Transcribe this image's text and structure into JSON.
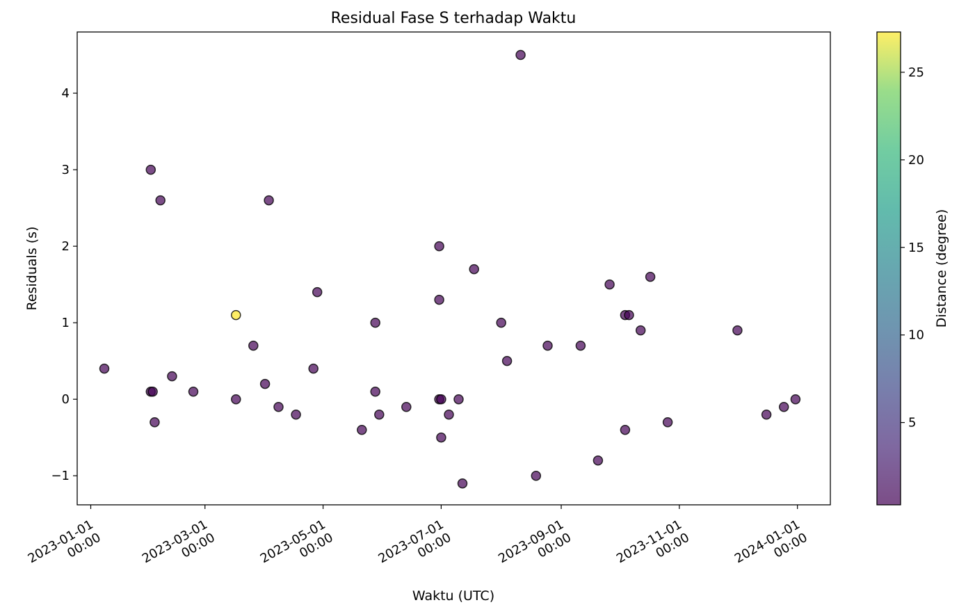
{
  "chart_data": {
    "type": "scatter",
    "title": "Residual Fase S terhadap Waktu",
    "xlabel": "Waktu (UTC)",
    "ylabel": "Residuals (s)",
    "x_axis": "date",
    "xlim": [
      "2022-12-25",
      "2024-01-18"
    ],
    "ylim": [
      -1.38,
      4.8
    ],
    "x_ticks": [
      {
        "date": "2023-01-01",
        "line1": "2023-01-01",
        "line2": "00:00"
      },
      {
        "date": "2023-03-01",
        "line1": "2023-03-01",
        "line2": "00:00"
      },
      {
        "date": "2023-05-01",
        "line1": "2023-05-01",
        "line2": "00:00"
      },
      {
        "date": "2023-07-01",
        "line1": "2023-07-01",
        "line2": "00:00"
      },
      {
        "date": "2023-09-01",
        "line1": "2023-09-01",
        "line2": "00:00"
      },
      {
        "date": "2023-11-01",
        "line1": "2023-11-01",
        "line2": "00:00"
      },
      {
        "date": "2024-01-01",
        "line1": "2024-01-01",
        "line2": "00:00"
      }
    ],
    "y_ticks": [
      -1,
      0,
      1,
      2,
      3,
      4
    ],
    "grid": false,
    "colorbar": {
      "label": "Distance (degree)",
      "min": 0.3,
      "max": 27.3,
      "ticks": [
        5,
        10,
        15,
        20,
        25
      ],
      "colormap": "viridis"
    },
    "marker_alpha": 0.7,
    "points": [
      {
        "x": "2023-01-08",
        "y": 0.4,
        "c": 0.5
      },
      {
        "x": "2023-02-01",
        "y": 3.0,
        "c": 0.5
      },
      {
        "x": "2023-02-01",
        "y": 0.1,
        "c": 0.5
      },
      {
        "x": "2023-02-02",
        "y": 0.1,
        "c": 0.5
      },
      {
        "x": "2023-02-03",
        "y": -0.3,
        "c": 0.5
      },
      {
        "x": "2023-02-06",
        "y": 2.6,
        "c": 0.5
      },
      {
        "x": "2023-02-12",
        "y": 0.3,
        "c": 0.5
      },
      {
        "x": "2023-02-23",
        "y": 0.1,
        "c": 0.5
      },
      {
        "x": "2023-03-17",
        "y": 1.1,
        "c": 27.3
      },
      {
        "x": "2023-03-17",
        "y": 0.0,
        "c": 0.5
      },
      {
        "x": "2023-03-26",
        "y": 0.7,
        "c": 0.5
      },
      {
        "x": "2023-04-01",
        "y": 0.2,
        "c": 0.5
      },
      {
        "x": "2023-04-03",
        "y": 2.6,
        "c": 0.5
      },
      {
        "x": "2023-04-08",
        "y": -0.1,
        "c": 0.5
      },
      {
        "x": "2023-04-17",
        "y": -0.2,
        "c": 0.5
      },
      {
        "x": "2023-04-26",
        "y": 0.4,
        "c": 0.5
      },
      {
        "x": "2023-04-28",
        "y": 1.4,
        "c": 0.5
      },
      {
        "x": "2023-05-21",
        "y": -0.4,
        "c": 0.5
      },
      {
        "x": "2023-05-28",
        "y": 1.0,
        "c": 0.5
      },
      {
        "x": "2023-05-28",
        "y": 0.1,
        "c": 0.5
      },
      {
        "x": "2023-05-30",
        "y": -0.2,
        "c": 0.5
      },
      {
        "x": "2023-06-13",
        "y": -0.1,
        "c": 0.5
      },
      {
        "x": "2023-06-30",
        "y": 2.0,
        "c": 0.5
      },
      {
        "x": "2023-06-30",
        "y": 1.3,
        "c": 0.5
      },
      {
        "x": "2023-06-30",
        "y": 0.0,
        "c": 0.3
      },
      {
        "x": "2023-07-01",
        "y": 0.0,
        "c": 0.4
      },
      {
        "x": "2023-07-01",
        "y": -0.5,
        "c": 0.5
      },
      {
        "x": "2023-07-05",
        "y": -0.2,
        "c": 0.5
      },
      {
        "x": "2023-07-10",
        "y": 0.0,
        "c": 0.5
      },
      {
        "x": "2023-07-12",
        "y": -1.1,
        "c": 0.5
      },
      {
        "x": "2023-07-18",
        "y": 1.7,
        "c": 0.5
      },
      {
        "x": "2023-08-01",
        "y": 1.0,
        "c": 0.5
      },
      {
        "x": "2023-08-04",
        "y": 0.5,
        "c": 0.5
      },
      {
        "x": "2023-08-11",
        "y": 4.5,
        "c": 0.5
      },
      {
        "x": "2023-08-19",
        "y": -1.0,
        "c": 0.5
      },
      {
        "x": "2023-08-25",
        "y": 0.7,
        "c": 0.5
      },
      {
        "x": "2023-09-11",
        "y": 0.7,
        "c": 0.5
      },
      {
        "x": "2023-09-20",
        "y": -0.8,
        "c": 0.5
      },
      {
        "x": "2023-09-26",
        "y": 1.5,
        "c": 0.5
      },
      {
        "x": "2023-10-04",
        "y": 1.1,
        "c": 0.5
      },
      {
        "x": "2023-10-04",
        "y": -0.4,
        "c": 0.5
      },
      {
        "x": "2023-10-06",
        "y": 1.1,
        "c": 0.5
      },
      {
        "x": "2023-10-12",
        "y": 0.9,
        "c": 0.5
      },
      {
        "x": "2023-10-17",
        "y": 1.6,
        "c": 0.5
      },
      {
        "x": "2023-10-26",
        "y": -0.3,
        "c": 0.5
      },
      {
        "x": "2023-12-01",
        "y": 0.9,
        "c": 0.5
      },
      {
        "x": "2023-12-16",
        "y": -0.2,
        "c": 0.5
      },
      {
        "x": "2023-12-25",
        "y": -0.1,
        "c": 0.5
      },
      {
        "x": "2023-12-31",
        "y": 0.0,
        "c": 0.5
      }
    ]
  }
}
